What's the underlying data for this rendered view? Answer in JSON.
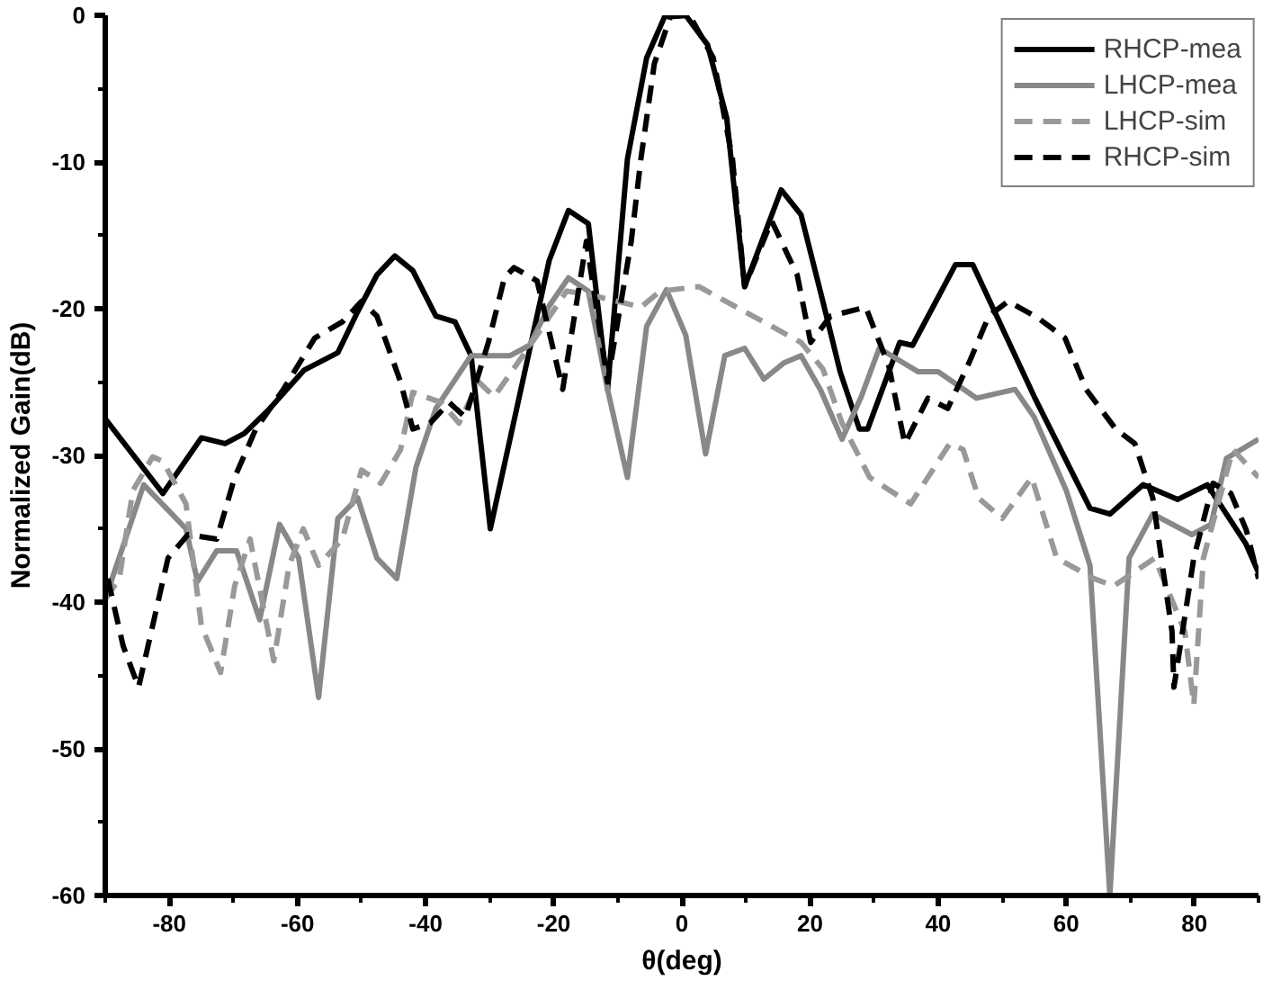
{
  "chart_data": {
    "type": "line",
    "xlabel": "θ(deg)",
    "ylabel": "Normalized Gain(dB)",
    "xlim": [
      -90,
      90
    ],
    "ylim": [
      -60,
      0
    ],
    "xticks": [
      -80,
      -60,
      -40,
      -20,
      0,
      20,
      40,
      60,
      80
    ],
    "yticks": [
      -60,
      -50,
      -40,
      -30,
      -20,
      -10,
      0
    ],
    "grid": false,
    "legend": "top right",
    "marker": "none",
    "series": [
      {
        "name": "RHCP-mea",
        "color": "#000000",
        "line_style": "solid",
        "x": [
          -90,
          -81,
          -75,
          -71.3,
          -68.3,
          -64.3,
          -59,
          -53.7,
          -50.6,
          -47.6,
          -44.8,
          -42,
          -38.4,
          -35.4,
          -32.9,
          -29.9,
          -20.7,
          -17.7,
          -14.6,
          -11.6,
          -8.5,
          -5.5,
          -2.7,
          0.6,
          4,
          7,
          9.8,
          15.5,
          18.6,
          22,
          24.7,
          27.7,
          29,
          34,
          36,
          42.7,
          45.4,
          55,
          63.7,
          66.8,
          72,
          77.4,
          82,
          88,
          90
        ],
        "values": [
          -27.5,
          -32.6,
          -28.8,
          -29.2,
          -28.5,
          -26.8,
          -24.2,
          -23,
          -20.2,
          -17.7,
          -16.4,
          -17.4,
          -20.5,
          -20.9,
          -23.2,
          -35,
          -16.7,
          -13.3,
          -14.2,
          -25.5,
          -9.8,
          -2.9,
          -0.1,
          0,
          -2,
          -7,
          -18.5,
          -11.9,
          -13.6,
          -19.5,
          -24.3,
          -28.2,
          -28.2,
          -22.3,
          -22.5,
          -17,
          -17,
          -26,
          -33.6,
          -34,
          -32,
          -33,
          -32,
          -36,
          -38
        ]
      },
      {
        "name": "LHCP-mea",
        "color": "#888888",
        "line_style": "solid",
        "x": [
          -90,
          -84,
          -79.6,
          -77.4,
          -75.6,
          -72.6,
          -69.5,
          -65.9,
          -62.8,
          -59.8,
          -56.7,
          -53.7,
          -50.6,
          -47.6,
          -44.5,
          -41.5,
          -38.4,
          -32.9,
          -26.8,
          -23.8,
          -20.7,
          -17.7,
          -14.6,
          -11.6,
          -8.5,
          -5.5,
          -2.4,
          0.6,
          3.7,
          6.7,
          9.8,
          12.8,
          15.9,
          18.6,
          21.6,
          25,
          28,
          30.8,
          36.9,
          40,
          46,
          52,
          55,
          60,
          63.7,
          66.8,
          69.8,
          73.5,
          79.6,
          82.6,
          85,
          90
        ],
        "values": [
          -39.8,
          -32,
          -34,
          -35,
          -38.6,
          -36.5,
          -36.5,
          -41.2,
          -34.7,
          -37,
          -46.5,
          -34.3,
          -32.9,
          -37,
          -38.4,
          -30.8,
          -26.8,
          -23.2,
          -23.2,
          -22.5,
          -19.8,
          -17.9,
          -18.8,
          -25.5,
          -31.5,
          -21.2,
          -18.7,
          -21.8,
          -29.9,
          -23.2,
          -22.7,
          -24.8,
          -23.7,
          -23.2,
          -25.5,
          -28.9,
          -26,
          -22.7,
          -24.3,
          -24.3,
          -26.1,
          -25.5,
          -27.4,
          -32.4,
          -37.5,
          -60,
          -37,
          -34,
          -35.4,
          -34.7,
          -30.2,
          -28.9
        ]
      },
      {
        "name": "LHCP-sim",
        "color": "#999999",
        "line_style": "dashed",
        "x": [
          -90,
          -87.8,
          -85.7,
          -82.6,
          -81,
          -77.4,
          -75,
          -72,
          -69.8,
          -67.4,
          -63.7,
          -61.3,
          -59.1,
          -56.7,
          -53,
          -50,
          -47,
          -43.9,
          -42,
          -37.5,
          -34.8,
          -31.7,
          -29.3,
          -22.6,
          -18,
          -14.9,
          -10,
          -6.4,
          -3.4,
          2.7,
          9.8,
          12.8,
          18.6,
          22,
          25,
          29.3,
          35.7,
          37.8,
          41.8,
          43.9,
          46.3,
          50,
          54.6,
          58.5,
          64.3,
          67.4,
          73.8,
          78.5,
          79.9,
          81.4,
          86,
          90
        ],
        "values": [
          -39.8,
          -38.4,
          -32.4,
          -30.1,
          -30.4,
          -33.3,
          -41.6,
          -44.8,
          -38.9,
          -35.7,
          -44,
          -37.5,
          -35,
          -37.5,
          -35.7,
          -31,
          -31.9,
          -29.6,
          -25.7,
          -26.4,
          -27.8,
          -25,
          -26,
          -21.8,
          -18.8,
          -19,
          -19.5,
          -19.9,
          -18.8,
          -18.5,
          -20.2,
          -20.9,
          -22.3,
          -24.1,
          -27.8,
          -31.5,
          -33.3,
          -31.9,
          -29.2,
          -29.6,
          -32.9,
          -34.3,
          -31.5,
          -37,
          -38.4,
          -38.9,
          -37,
          -42,
          -47,
          -37,
          -29.6,
          -31.5
        ]
      },
      {
        "name": "RHCP-sim",
        "color": "#000000",
        "line_style": "dashed",
        "x": [
          -89.6,
          -87.2,
          -84.8,
          -82.6,
          -80.2,
          -77.1,
          -72.6,
          -69.8,
          -66.5,
          -62.2,
          -57.3,
          -53,
          -50,
          -47.6,
          -43.9,
          -42,
          -39.3,
          -36.3,
          -33.8,
          -30.2,
          -27.7,
          -26.2,
          -22.6,
          -18.6,
          -14.9,
          -11.6,
          -7.9,
          -6.4,
          -4.3,
          -1.8,
          1.2,
          4.9,
          7.9,
          9.8,
          14,
          18,
          20.1,
          23.2,
          28.7,
          32.3,
          34.8,
          38.4,
          41.5,
          44.8,
          47.9,
          50.9,
          55.5,
          59.8,
          63.1,
          67.7,
          70.7,
          73.5,
          75,
          76.5,
          76.8,
          79.9,
          82.9,
          85.7,
          88.1,
          90
        ],
        "values": [
          -38.4,
          -43,
          -45.8,
          -41.6,
          -37,
          -35.4,
          -35.7,
          -31.5,
          -28.2,
          -25.5,
          -22,
          -20.9,
          -19.5,
          -20.5,
          -25,
          -28.2,
          -27.8,
          -26.4,
          -27.4,
          -22.3,
          -17.9,
          -17.2,
          -18.1,
          -25.5,
          -15.4,
          -25,
          -15.4,
          -9.8,
          -3.3,
          -0.1,
          0,
          -2.9,
          -9.8,
          -18.5,
          -14,
          -17.7,
          -22.3,
          -20.5,
          -19.9,
          -23.9,
          -29.2,
          -26.1,
          -26.8,
          -23.7,
          -20.5,
          -19.5,
          -20.6,
          -22,
          -25.5,
          -28.2,
          -29.2,
          -32.9,
          -37.5,
          -42,
          -45.8,
          -37,
          -31.9,
          -32.6,
          -35.1,
          -38.4
        ]
      }
    ]
  }
}
